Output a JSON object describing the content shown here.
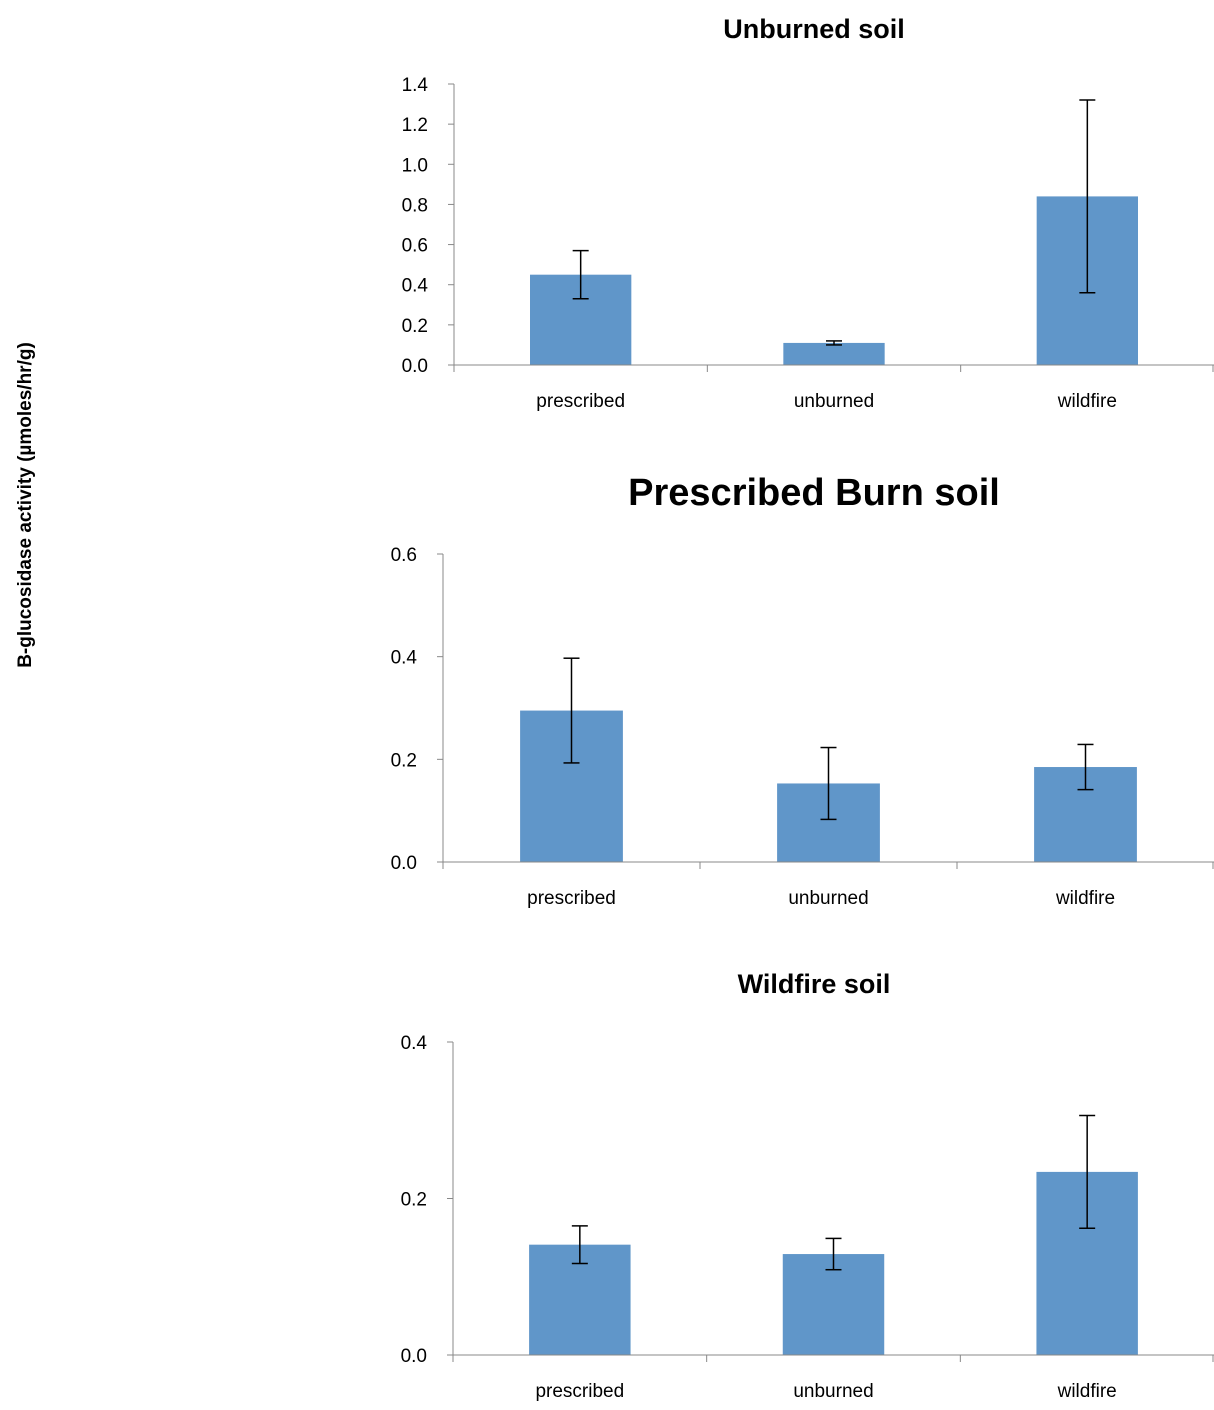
{
  "figure": {
    "ylabel": "B-glucosidase activity (µmoles/hr/g)"
  },
  "chart_data": [
    {
      "type": "bar",
      "title": "Unburned soil",
      "xlabel": "",
      "ylabel": "B-glucosidase activity (µmoles/hr/g)",
      "categories": [
        "prescribed",
        "unburned",
        "wildfire"
      ],
      "values": [
        0.45,
        0.11,
        0.84
      ],
      "error_low": [
        0.33,
        0.1,
        0.36
      ],
      "error_high": [
        0.57,
        0.12,
        1.32
      ],
      "ylim": [
        0,
        1.4
      ],
      "yticks": [
        "0.0",
        "0.2",
        "0.4",
        "0.6",
        "0.8",
        "1.0",
        "1.2",
        "1.4"
      ],
      "bar_color": "#6096C9",
      "grid": false
    },
    {
      "type": "bar",
      "title": "Prescribed Burn soil",
      "xlabel": "",
      "ylabel": "B-glucosidase activity (µmoles/hr/g)",
      "categories": [
        "prescribed",
        "unburned",
        "wildfire"
      ],
      "values": [
        0.295,
        0.153,
        0.185
      ],
      "error_low": [
        0.193,
        0.083,
        0.141
      ],
      "error_high": [
        0.397,
        0.223,
        0.229
      ],
      "ylim": [
        0,
        0.6
      ],
      "yticks": [
        "0.0",
        "0.2",
        "0.4",
        "0.6"
      ],
      "bar_color": "#6096C9",
      "grid": false
    },
    {
      "type": "bar",
      "title": "Wildfire soil",
      "xlabel": "",
      "ylabel": "B-glucosidase activity (µmoles/hr/g)",
      "categories": [
        "prescribed",
        "unburned",
        "wildfire"
      ],
      "values": [
        0.141,
        0.129,
        0.234
      ],
      "error_low": [
        0.117,
        0.109,
        0.162
      ],
      "error_high": [
        0.165,
        0.149,
        0.306
      ],
      "ylim": [
        0,
        0.4
      ],
      "yticks": [
        "0.0",
        "0.2",
        "0.4"
      ],
      "bar_color": "#6096C9",
      "grid": false
    }
  ]
}
